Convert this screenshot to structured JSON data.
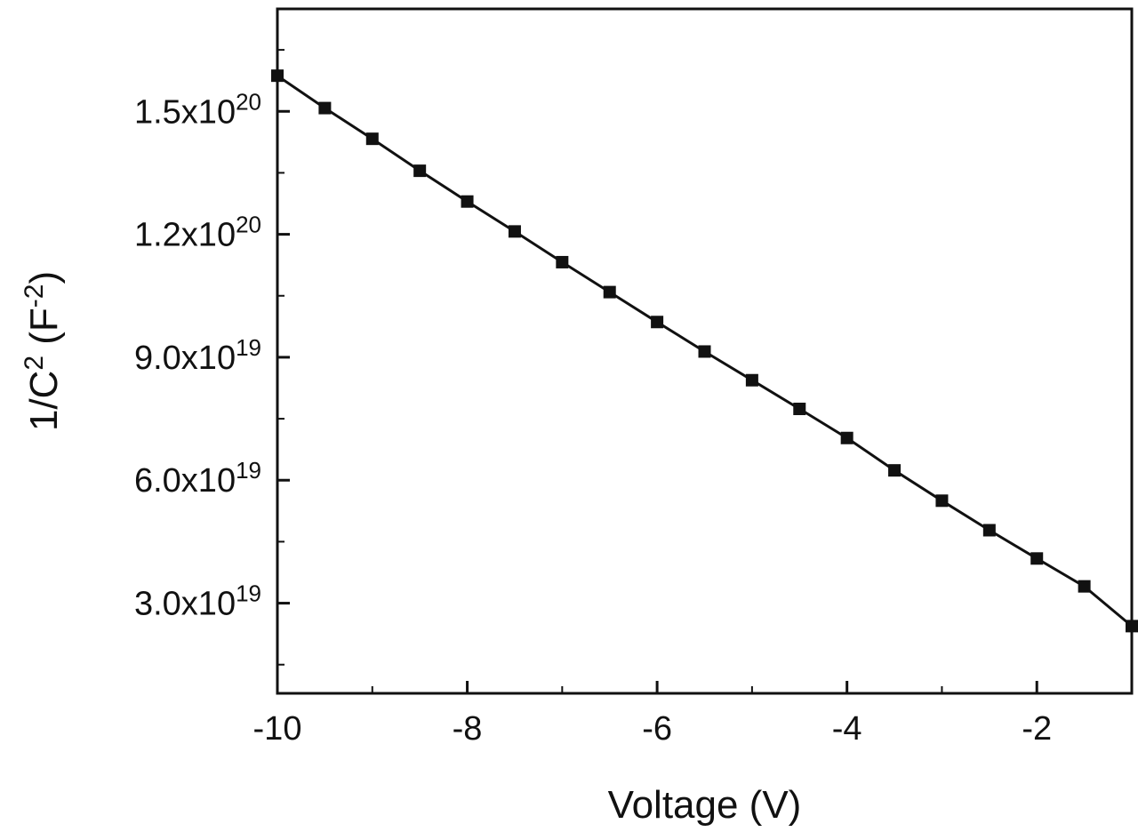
{
  "chart_data": {
    "type": "line",
    "title": "",
    "xlabel": "Voltage (V)",
    "ylabel": {
      "prefix": "1/C",
      "prefix_sup": "2",
      "middle": " (F",
      "middle_sup": "-2",
      "suffix": ")"
    },
    "xlim": [
      -10,
      -1
    ],
    "ylim": [
      8000000000000000000,
      175000000000000000000
    ],
    "x_ticks": [
      {
        "value": -10,
        "label": "-10"
      },
      {
        "value": -8,
        "label": "-8"
      },
      {
        "value": -6,
        "label": "-6"
      },
      {
        "value": -4,
        "label": "-4"
      },
      {
        "value": -2,
        "label": "-2"
      }
    ],
    "y_ticks": [
      {
        "value": 30000000000000000000,
        "mantissa": "3.0x10",
        "exponent": "19"
      },
      {
        "value": 60000000000000000000,
        "mantissa": "6.0x10",
        "exponent": "19"
      },
      {
        "value": 90000000000000000000,
        "mantissa": "9.0x10",
        "exponent": "19"
      },
      {
        "value": 120000000000000000000,
        "mantissa": "1.2x10",
        "exponent": "20"
      },
      {
        "value": 150000000000000000000,
        "mantissa": "1.5x10",
        "exponent": "20"
      }
    ],
    "grid": false,
    "legend": "none",
    "series": [
      {
        "marker": "square",
        "color": "#111111",
        "x": [
          -10,
          -9.5,
          -9,
          -8.5,
          -8,
          -7.5,
          -7,
          -6.5,
          -6,
          -5.5,
          -5,
          -4.5,
          -4,
          -3.5,
          -3,
          -2.5,
          -2,
          -1.5,
          -1
        ],
        "y": [
          158700000000000000000,
          150800000000000000000,
          143300000000000000000,
          135500000000000000000,
          128000000000000000000,
          120700000000000000000,
          113200000000000000000,
          105900000000000000000,
          98600000000000000000,
          91400000000000000000,
          84400000000000000000,
          77400000000000000000,
          70300000000000000000,
          62400000000000000000,
          55000000000000000000,
          47800000000000000000,
          40900000000000000000,
          34100000000000000000,
          24400000000000000000
        ]
      }
    ]
  }
}
